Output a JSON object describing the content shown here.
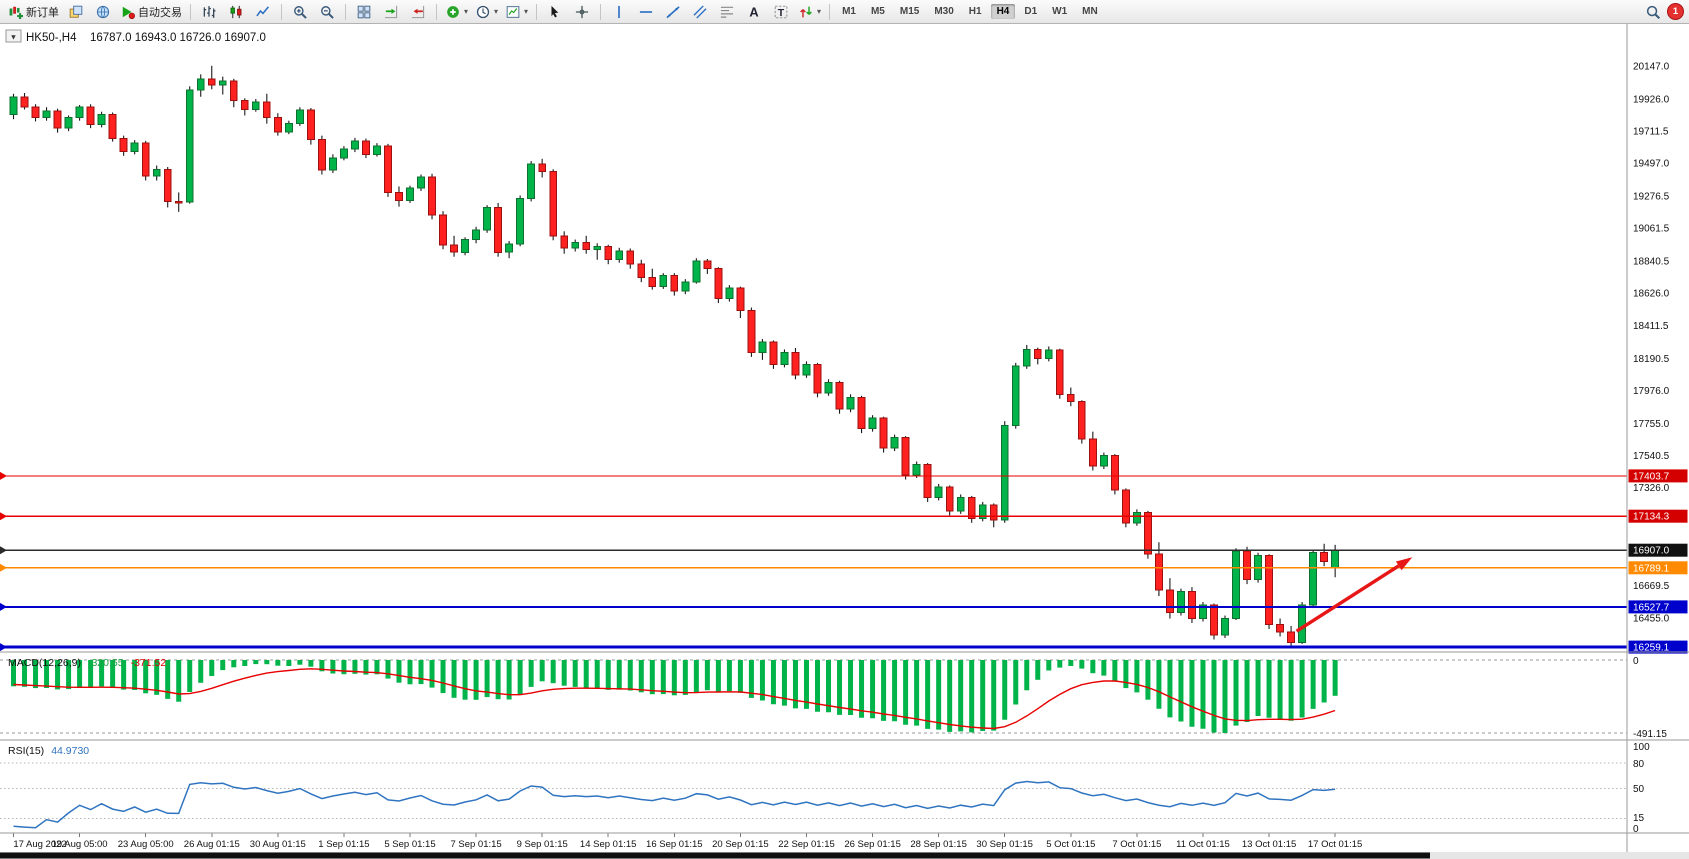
{
  "toolbar": {
    "new_order_label": "新订单",
    "auto_trading_label": "自动交易",
    "timeframes": [
      "M1",
      "M5",
      "M15",
      "M30",
      "H1",
      "H4",
      "D1",
      "W1",
      "MN"
    ],
    "active_timeframe": "H4",
    "notification_count": "1",
    "items": [
      {
        "name": "new-order-button",
        "icon": "new-order",
        "label_key": "new_order_label"
      },
      {
        "name": "charts-button",
        "icon": "layers"
      },
      {
        "name": "market-watch-button",
        "icon": "globe"
      },
      {
        "name": "auto-trading-button",
        "icon": "play",
        "label_key": "auto_trading_label"
      },
      {
        "sep": true
      },
      {
        "name": "bar-chart-button",
        "icon": "bars"
      },
      {
        "name": "candlestick-chart-button",
        "icon": "candles"
      },
      {
        "name": "line-chart-button",
        "icon": "linechart"
      },
      {
        "sep": true
      },
      {
        "name": "zoom-in-button",
        "icon": "zoom-in"
      },
      {
        "name": "zoom-out-button",
        "icon": "zoom-out"
      },
      {
        "sep": true
      },
      {
        "name": "tile-windows-button",
        "icon": "tile"
      },
      {
        "name": "auto-scroll-button",
        "icon": "autoscroll"
      },
      {
        "name": "chart-shift-button",
        "icon": "shift"
      },
      {
        "sep": true
      },
      {
        "name": "indicators-button",
        "icon": "indicator",
        "caret": true
      },
      {
        "name": "periods-button",
        "icon": "clock",
        "caret": true
      },
      {
        "name": "templates-button",
        "icon": "template",
        "caret": true
      },
      {
        "sep": true
      },
      {
        "name": "cursor-button",
        "icon": "cursor"
      },
      {
        "name": "crosshair-button",
        "icon": "crosshair"
      },
      {
        "sep": true
      },
      {
        "name": "vertical-line-button",
        "icon": "vline"
      },
      {
        "name": "horizontal-line-button",
        "icon": "hline"
      },
      {
        "name": "trendline-button",
        "icon": "tline"
      },
      {
        "name": "equidistant-channel-button",
        "icon": "channel"
      },
      {
        "name": "fibonacci-button",
        "icon": "fibo"
      },
      {
        "name": "text-button",
        "icon": "text-a"
      },
      {
        "name": "label-button",
        "icon": "text-t"
      },
      {
        "name": "arrows-button",
        "icon": "arrows",
        "caret": true
      },
      {
        "sep": true
      }
    ]
  },
  "chart": {
    "symbol_label": "HK50-,H4",
    "ohlc_label": "16787.0 16943.0 16726.0 16907.0",
    "expander_glyph": "▼",
    "colors": {
      "up": "#00b44a",
      "up_stroke": "#0e6f2e",
      "down": "#ff2020",
      "down_stroke": "#9c1010",
      "wick": "#1a1a1a",
      "macd_hist": "#00b44a",
      "macd_signal": "#e80000",
      "rsi_line": "#2f74c0",
      "level_dotted": "#b5b5b5"
    }
  },
  "chart_data": {
    "type": "candlestick",
    "title": "HK50-,H4",
    "timeframe": "H4",
    "ohlc_current": {
      "open": 16787.0,
      "high": 16943.0,
      "low": 16726.0,
      "close": 16907.0
    },
    "ylim": [
      16226,
      20400
    ],
    "candles": [
      [
        19820,
        19960,
        19790,
        19940
      ],
      [
        19940,
        19965,
        19855,
        19870
      ],
      [
        19870,
        19890,
        19775,
        19800
      ],
      [
        19800,
        19870,
        19780,
        19845
      ],
      [
        19845,
        19860,
        19700,
        19730
      ],
      [
        19730,
        19815,
        19710,
        19800
      ],
      [
        19800,
        19885,
        19780,
        19870
      ],
      [
        19870,
        19890,
        19730,
        19755
      ],
      [
        19755,
        19840,
        19735,
        19820
      ],
      [
        19820,
        19835,
        19640,
        19660
      ],
      [
        19660,
        19680,
        19545,
        19575
      ],
      [
        19575,
        19650,
        19555,
        19630
      ],
      [
        19630,
        19645,
        19380,
        19410
      ],
      [
        19410,
        19480,
        19380,
        19455
      ],
      [
        19455,
        19470,
        19200,
        19240
      ],
      [
        19240,
        19300,
        19170,
        19235
      ],
      [
        19235,
        20010,
        19225,
        19985
      ],
      [
        19985,
        20090,
        19940,
        20060
      ],
      [
        20060,
        20147,
        19990,
        20020
      ],
      [
        20020,
        20075,
        19955,
        20045
      ],
      [
        20045,
        20060,
        19870,
        19915
      ],
      [
        19915,
        19930,
        19815,
        19855
      ],
      [
        19855,
        19925,
        19840,
        19905
      ],
      [
        19905,
        19960,
        19760,
        19800
      ],
      [
        19800,
        19830,
        19680,
        19705
      ],
      [
        19705,
        19780,
        19690,
        19760
      ],
      [
        19760,
        19870,
        19745,
        19850
      ],
      [
        19850,
        19865,
        19620,
        19655
      ],
      [
        19655,
        19680,
        19420,
        19450
      ],
      [
        19450,
        19555,
        19430,
        19530
      ],
      [
        19530,
        19610,
        19515,
        19590
      ],
      [
        19590,
        19665,
        19570,
        19645
      ],
      [
        19645,
        19660,
        19530,
        19555
      ],
      [
        19555,
        19630,
        19540,
        19610
      ],
      [
        19610,
        19625,
        19270,
        19300
      ],
      [
        19300,
        19340,
        19205,
        19245
      ],
      [
        19245,
        19345,
        19230,
        19330
      ],
      [
        19330,
        19420,
        19310,
        19405
      ],
      [
        19405,
        19425,
        19120,
        19150
      ],
      [
        19150,
        19175,
        18920,
        18950
      ],
      [
        18950,
        19010,
        18870,
        18900
      ],
      [
        18900,
        19000,
        18880,
        18985
      ],
      [
        18985,
        19070,
        18960,
        19050
      ],
      [
        19050,
        19215,
        19030,
        19200
      ],
      [
        19200,
        19230,
        18870,
        18900
      ],
      [
        18900,
        18975,
        18860,
        18955
      ],
      [
        18955,
        19280,
        18940,
        19260
      ],
      [
        19260,
        19510,
        19240,
        19490
      ],
      [
        19490,
        19525,
        19400,
        19440
      ],
      [
        19440,
        19455,
        18980,
        19010
      ],
      [
        19010,
        19040,
        18890,
        18930
      ],
      [
        18930,
        18985,
        18905,
        18965
      ],
      [
        18965,
        19010,
        18890,
        18920
      ],
      [
        18920,
        18960,
        18850,
        18940
      ],
      [
        18940,
        18950,
        18820,
        18850
      ],
      [
        18850,
        18930,
        18830,
        18910
      ],
      [
        18910,
        18925,
        18790,
        18820
      ],
      [
        18820,
        18850,
        18700,
        18730
      ],
      [
        18730,
        18790,
        18650,
        18670
      ],
      [
        18670,
        18760,
        18655,
        18745
      ],
      [
        18745,
        18760,
        18610,
        18640
      ],
      [
        18640,
        18720,
        18620,
        18700
      ],
      [
        18700,
        18860,
        18690,
        18840
      ],
      [
        18840,
        18855,
        18755,
        18790
      ],
      [
        18790,
        18800,
        18560,
        18590
      ],
      [
        18590,
        18680,
        18570,
        18660
      ],
      [
        18660,
        18670,
        18460,
        18510
      ],
      [
        18510,
        18530,
        18200,
        18230
      ],
      [
        18230,
        18320,
        18180,
        18300
      ],
      [
        18300,
        18310,
        18120,
        18150
      ],
      [
        18150,
        18250,
        18130,
        18230
      ],
      [
        18230,
        18260,
        18050,
        18080
      ],
      [
        18080,
        18170,
        18060,
        18150
      ],
      [
        18150,
        18160,
        17930,
        17960
      ],
      [
        17960,
        18050,
        17940,
        18030
      ],
      [
        18030,
        18040,
        17820,
        17850
      ],
      [
        17850,
        17950,
        17830,
        17930
      ],
      [
        17930,
        17940,
        17690,
        17720
      ],
      [
        17720,
        17810,
        17700,
        17790
      ],
      [
        17790,
        17800,
        17560,
        17590
      ],
      [
        17590,
        17680,
        17570,
        17660
      ],
      [
        17660,
        17670,
        17380,
        17410
      ],
      [
        17410,
        17500,
        17390,
        17480
      ],
      [
        17480,
        17490,
        17230,
        17260
      ],
      [
        17260,
        17350,
        17240,
        17330
      ],
      [
        17330,
        17340,
        17140,
        17170
      ],
      [
        17170,
        17280,
        17150,
        17260
      ],
      [
        17260,
        17270,
        17090,
        17120
      ],
      [
        17120,
        17230,
        17100,
        17210
      ],
      [
        17210,
        17220,
        17060,
        17110
      ],
      [
        17110,
        17770,
        17090,
        17740
      ],
      [
        17740,
        18160,
        17720,
        18140
      ],
      [
        18140,
        18280,
        18120,
        18250
      ],
      [
        18250,
        18262,
        18150,
        18190
      ],
      [
        18190,
        18270,
        18170,
        18245
      ],
      [
        18245,
        18255,
        17920,
        17950
      ],
      [
        17950,
        17995,
        17870,
        17900
      ],
      [
        17900,
        17910,
        17620,
        17650
      ],
      [
        17650,
        17700,
        17440,
        17470
      ],
      [
        17470,
        17560,
        17450,
        17540
      ],
      [
        17540,
        17550,
        17280,
        17310
      ],
      [
        17310,
        17320,
        17060,
        17090
      ],
      [
        17090,
        17180,
        17070,
        17160
      ],
      [
        17160,
        17170,
        16850,
        16880
      ],
      [
        16880,
        16960,
        16600,
        16640
      ],
      [
        16640,
        16720,
        16450,
        16490
      ],
      [
        16490,
        16650,
        16470,
        16630
      ],
      [
        16630,
        16660,
        16420,
        16450
      ],
      [
        16450,
        16560,
        16430,
        16540
      ],
      [
        16540,
        16550,
        16310,
        16340
      ],
      [
        16340,
        16470,
        16320,
        16450
      ],
      [
        16450,
        16920,
        16440,
        16900
      ],
      [
        16900,
        16930,
        16680,
        16710
      ],
      [
        16710,
        16890,
        16690,
        16870
      ],
      [
        16870,
        16880,
        16380,
        16410
      ],
      [
        16410,
        16450,
        16330,
        16360
      ],
      [
        16360,
        16400,
        16259,
        16290
      ],
      [
        16290,
        16560,
        16280,
        16540
      ],
      [
        16540,
        16910,
        16520,
        16890
      ],
      [
        16890,
        16950,
        16800,
        16830
      ],
      [
        16787,
        16943,
        16726,
        16907
      ]
    ],
    "x_labels": [
      {
        "i": 0,
        "label": "17 Aug 2022"
      },
      {
        "i": 6,
        "label": "19 Aug 05:00"
      },
      {
        "i": 12,
        "label": "23 Aug 05:00"
      },
      {
        "i": 18,
        "label": "26 Aug 01:15"
      },
      {
        "i": 24,
        "label": "30 Aug 01:15"
      },
      {
        "i": 30,
        "label": "1 Sep 01:15"
      },
      {
        "i": 36,
        "label": "5 Sep 01:15"
      },
      {
        "i": 42,
        "label": "7 Sep 01:15"
      },
      {
        "i": 48,
        "label": "9 Sep 01:15"
      },
      {
        "i": 54,
        "label": "14 Sep 01:15"
      },
      {
        "i": 60,
        "label": "16 Sep 01:15"
      },
      {
        "i": 66,
        "label": "20 Sep 01:15"
      },
      {
        "i": 72,
        "label": "22 Sep 01:15"
      },
      {
        "i": 78,
        "label": "26 Sep 01:15"
      },
      {
        "i": 84,
        "label": "28 Sep 01:15"
      },
      {
        "i": 90,
        "label": "30 Sep 01:15"
      },
      {
        "i": 96,
        "label": "5 Oct 01:15"
      },
      {
        "i": 102,
        "label": "7 Oct 01:15"
      },
      {
        "i": 108,
        "label": "11 Oct 01:15"
      },
      {
        "i": 114,
        "label": "13 Oct 01:15"
      },
      {
        "i": 120,
        "label": "17 Oct 01:15"
      }
    ],
    "y_ticks": [
      {
        "v": 20147.0,
        "label": "20147.0"
      },
      {
        "v": 19926.0,
        "label": "19926.0"
      },
      {
        "v": 19711.5,
        "label": "19711.5"
      },
      {
        "v": 19497.0,
        "label": "19497.0"
      },
      {
        "v": 19276.5,
        "label": "19276.5"
      },
      {
        "v": 19061.5,
        "label": "19061.5"
      },
      {
        "v": 18840.5,
        "label": "18840.5"
      },
      {
        "v": 18626.0,
        "label": "18626.0"
      },
      {
        "v": 18411.5,
        "label": "18411.5"
      },
      {
        "v": 18190.5,
        "label": "18190.5"
      },
      {
        "v": 17976.0,
        "label": "17976.0"
      },
      {
        "v": 17755.0,
        "label": "17755.0"
      },
      {
        "v": 17540.5,
        "label": "17540.5"
      },
      {
        "v": 17326.0,
        "label": "17326.0"
      },
      {
        "v": 16669.5,
        "label": "16669.5"
      },
      {
        "v": 16455.0,
        "label": "16455.0"
      }
    ],
    "lines": [
      {
        "price": 17403.7,
        "label": "17403.7",
        "color": "#e60000",
        "badge": "#d40000",
        "width": 1.3
      },
      {
        "price": 17134.3,
        "label": "17134.3",
        "color": "#e60000",
        "badge": "#d40000",
        "width": 1.3
      },
      {
        "price": 16907.0,
        "label": "16907.0",
        "color": "#2b2b2b",
        "badge": "#111111",
        "width": 1.1
      },
      {
        "price": 16789.1,
        "label": "16789.1",
        "color": "#ff8a00",
        "badge": "#ff8a00",
        "width": 1.3
      },
      {
        "price": 16527.7,
        "label": "16527.7",
        "color": "#0000cc",
        "badge": "#0000cc",
        "width": 1.9
      },
      {
        "price": 16259.1,
        "label": "16259.1",
        "color": "#0000cc",
        "badge": "#0000cc",
        "width": 2.8
      }
    ],
    "arrow": {
      "from_index": 116.5,
      "from_price": 16365,
      "to_index": 127,
      "to_price": 16860,
      "color": "#e81717"
    },
    "indicator_warmup": {
      "start": 20620,
      "end": 19920,
      "count": 30
    },
    "macd": {
      "label": "MACD(12,26,9)",
      "params": [
        12,
        26,
        9
      ],
      "value_main": "-320.55",
      "value_signal": "-371.52",
      "y_tick_top": "0",
      "y_tick_bottom": "-491.15"
    },
    "rsi": {
      "label": "RSI(15)",
      "period": 15,
      "value": "44.9730",
      "levels": [
        80,
        50,
        15
      ],
      "y_ticks": [
        "100",
        "80",
        "50",
        "15",
        "0"
      ]
    }
  }
}
